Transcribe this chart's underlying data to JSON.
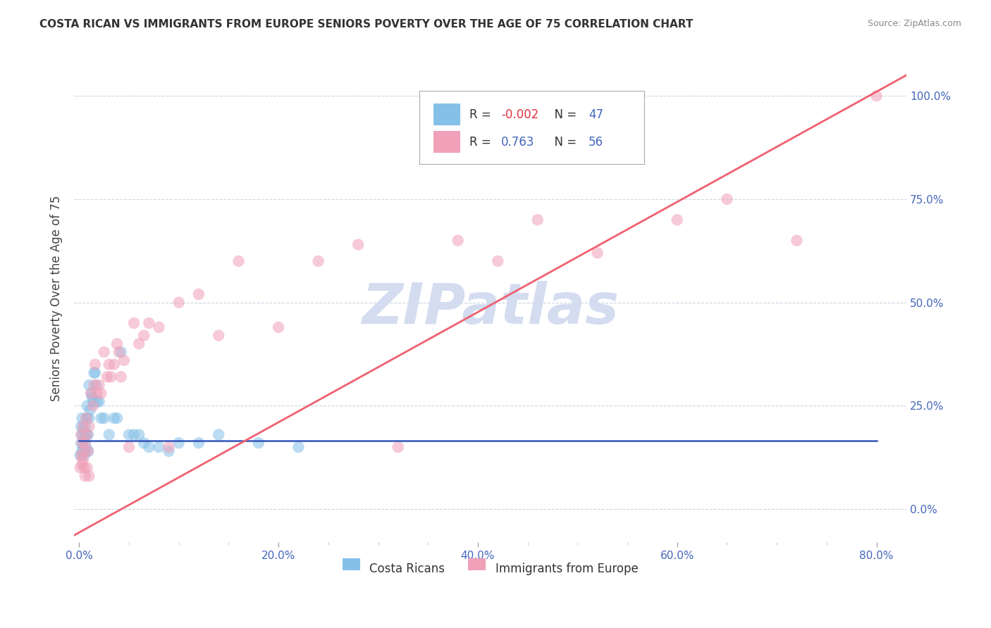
{
  "title": "COSTA RICAN VS IMMIGRANTS FROM EUROPE SENIORS POVERTY OVER THE AGE OF 75 CORRELATION CHART",
  "source": "Source: ZipAtlas.com",
  "ylabel": "Seniors Poverty Over the Age of 75",
  "x_tick_labels": [
    "0.0%",
    "",
    "",
    "",
    "20.0%",
    "",
    "",
    "",
    "40.0%",
    "",
    "",
    "",
    "60.0%",
    "",
    "",
    "",
    "80.0%"
  ],
  "x_tick_values": [
    0.0,
    0.05,
    0.1,
    0.15,
    0.2,
    0.25,
    0.3,
    0.35,
    0.4,
    0.45,
    0.5,
    0.55,
    0.6,
    0.65,
    0.7,
    0.75,
    0.8
  ],
  "y_tick_labels": [
    "0.0%",
    "25.0%",
    "50.0%",
    "75.0%",
    "100.0%"
  ],
  "y_tick_values": [
    0.0,
    0.25,
    0.5,
    0.75,
    1.0
  ],
  "xlim": [
    -0.005,
    0.83
  ],
  "ylim": [
    -0.08,
    1.1
  ],
  "blue_color": "#85C0E8",
  "pink_color": "#F0A0B8",
  "blue_line_color": "#3355BB",
  "pink_line_color": "#F06070",
  "watermark_color": "#D4DCF0",
  "legend_label_blue": "Costa Ricans",
  "legend_label_pink": "Immigrants from Europe",
  "R_blue": "-0.002",
  "N_blue": "47",
  "R_pink": "0.763",
  "N_pink": "56",
  "blue_scatter_x": [
    0.001,
    0.002,
    0.002,
    0.003,
    0.003,
    0.003,
    0.004,
    0.004,
    0.005,
    0.005,
    0.006,
    0.006,
    0.007,
    0.007,
    0.008,
    0.008,
    0.009,
    0.009,
    0.01,
    0.01,
    0.011,
    0.012,
    0.013,
    0.014,
    0.015,
    0.016,
    0.017,
    0.018,
    0.02,
    0.022,
    0.025,
    0.03,
    0.035,
    0.038,
    0.042,
    0.05,
    0.055,
    0.06,
    0.065,
    0.07,
    0.08,
    0.09,
    0.1,
    0.12,
    0.14,
    0.18,
    0.22
  ],
  "blue_scatter_y": [
    0.13,
    0.16,
    0.2,
    0.14,
    0.18,
    0.22,
    0.15,
    0.19,
    0.13,
    0.17,
    0.14,
    0.2,
    0.15,
    0.18,
    0.22,
    0.25,
    0.14,
    0.18,
    0.3,
    0.22,
    0.24,
    0.28,
    0.27,
    0.26,
    0.33,
    0.33,
    0.3,
    0.26,
    0.26,
    0.22,
    0.22,
    0.18,
    0.22,
    0.22,
    0.38,
    0.18,
    0.18,
    0.18,
    0.16,
    0.15,
    0.15,
    0.14,
    0.16,
    0.16,
    0.18,
    0.16,
    0.15
  ],
  "pink_scatter_x": [
    0.001,
    0.002,
    0.002,
    0.003,
    0.003,
    0.004,
    0.004,
    0.005,
    0.005,
    0.006,
    0.006,
    0.007,
    0.008,
    0.008,
    0.009,
    0.01,
    0.01,
    0.012,
    0.014,
    0.015,
    0.016,
    0.018,
    0.02,
    0.022,
    0.025,
    0.028,
    0.03,
    0.032,
    0.035,
    0.038,
    0.04,
    0.042,
    0.045,
    0.05,
    0.055,
    0.06,
    0.065,
    0.07,
    0.08,
    0.09,
    0.1,
    0.12,
    0.14,
    0.16,
    0.2,
    0.24,
    0.28,
    0.32,
    0.38,
    0.42,
    0.46,
    0.52,
    0.6,
    0.65,
    0.72,
    0.8
  ],
  "pink_scatter_y": [
    0.1,
    0.13,
    0.18,
    0.11,
    0.16,
    0.12,
    0.2,
    0.1,
    0.14,
    0.08,
    0.16,
    0.22,
    0.1,
    0.18,
    0.14,
    0.08,
    0.2,
    0.28,
    0.25,
    0.3,
    0.35,
    0.28,
    0.3,
    0.28,
    0.38,
    0.32,
    0.35,
    0.32,
    0.35,
    0.4,
    0.38,
    0.32,
    0.36,
    0.15,
    0.45,
    0.4,
    0.42,
    0.45,
    0.44,
    0.15,
    0.5,
    0.52,
    0.42,
    0.6,
    0.44,
    0.6,
    0.64,
    0.15,
    0.65,
    0.6,
    0.7,
    0.62,
    0.7,
    0.75,
    0.65,
    1.0
  ],
  "blue_line_x": [
    0.0,
    0.8
  ],
  "blue_line_y": [
    0.165,
    0.165
  ],
  "pink_line_x": [
    -0.01,
    0.83
  ],
  "pink_line_y": [
    -0.07,
    1.05
  ],
  "dot_size": 140,
  "dot_alpha": 0.55
}
